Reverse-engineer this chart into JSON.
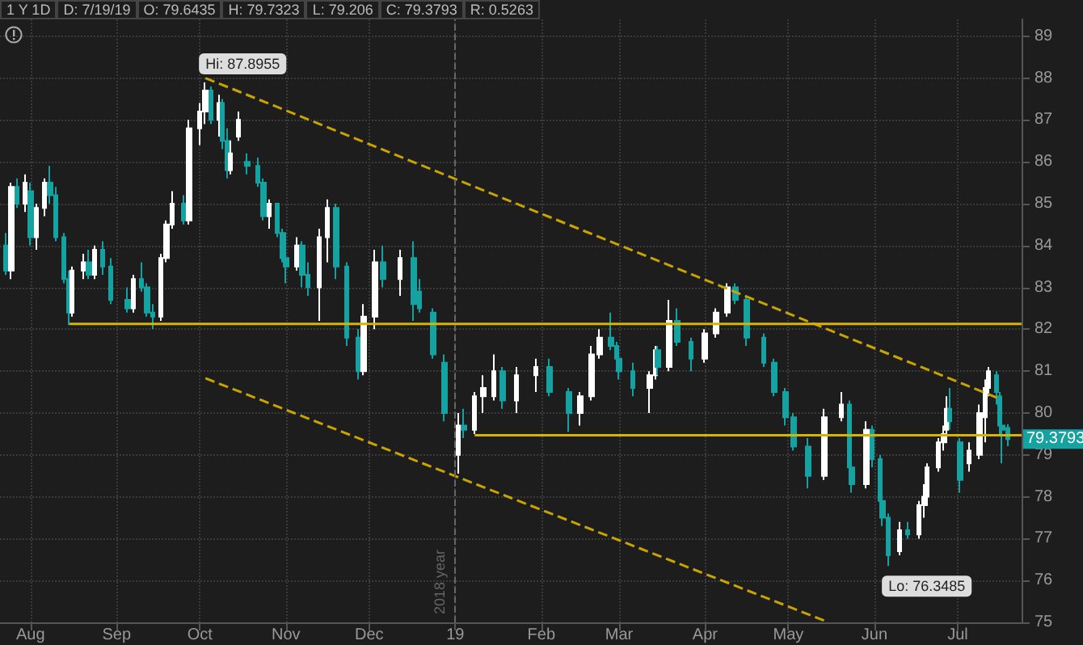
{
  "chart_data": {
    "type": "candlestick",
    "annotations": [
      "1 Y 1D",
      "D: 7/19/19",
      "O: 79.6435",
      "H: 79.7323",
      "L: 79.206",
      "C: 79.3793",
      "R: 0.5263",
      {
        "text": "Hi: 87.8955",
        "x": "2018-10-03",
        "y": 87.8955
      },
      {
        "text": "Lo: 76.3485",
        "x": "2019-06-06",
        "y": 76.3485
      },
      {
        "text": "79.3793",
        "x": "2019-07-19",
        "y": 79.3793
      }
    ],
    "x": [
      "2018-07-23",
      "2018-07-25",
      "2018-07-27",
      "2018-07-30",
      "2018-08-01",
      "2018-08-03",
      "2018-08-06",
      "2018-08-08",
      "2018-08-10",
      "2018-08-13",
      "2018-08-15",
      "2018-08-16",
      "2018-08-20",
      "2018-08-22",
      "2018-08-24",
      "2018-08-27",
      "2018-08-30",
      "2018-09-05",
      "2018-09-07",
      "2018-09-10",
      "2018-09-12",
      "2018-09-14",
      "2018-09-17",
      "2018-09-19",
      "2018-09-21",
      "2018-09-25",
      "2018-09-27",
      "2018-10-01",
      "2018-10-03",
      "2018-10-05",
      "2018-10-08",
      "2018-10-09",
      "2018-10-11",
      "2018-10-12",
      "2018-10-15",
      "2018-10-18",
      "2018-10-22",
      "2018-10-24",
      "2018-10-26",
      "2018-10-29",
      "2018-10-31",
      "2018-11-01",
      "2018-11-05",
      "2018-11-07",
      "2018-11-09",
      "2018-11-13",
      "2018-11-16",
      "2018-11-19",
      "2018-11-23",
      "2018-11-27",
      "2018-11-29",
      "2018-12-03",
      "2018-12-06",
      "2018-12-12",
      "2018-12-17",
      "2018-12-19",
      "2018-12-24",
      "2018-12-28",
      "2019-01-02",
      "2019-01-04",
      "2019-01-08",
      "2019-01-11",
      "2019-01-15",
      "2019-01-18",
      "2019-01-23",
      "2019-01-30",
      "2019-02-04",
      "2019-02-11",
      "2019-02-15",
      "2019-02-19",
      "2019-02-22",
      "2019-02-26",
      "2019-02-28",
      "2019-03-01",
      "2019-03-06",
      "2019-03-12",
      "2019-03-14",
      "2019-03-15",
      "2019-03-19",
      "2019-03-22",
      "2019-03-27",
      "2019-04-01",
      "2019-04-05",
      "2019-04-09",
      "2019-04-12",
      "2019-04-16",
      "2019-04-22",
      "2019-04-26",
      "2019-04-30",
      "2019-05-03",
      "2019-05-08",
      "2019-05-14",
      "2019-05-20",
      "2019-05-23",
      "2019-05-24",
      "2019-05-29",
      "2019-05-31",
      "2019-06-03",
      "2019-06-04",
      "2019-06-06",
      "2019-06-10",
      "2019-06-13",
      "2019-06-17",
      "2019-06-19",
      "2019-06-20",
      "2019-06-24",
      "2019-06-26",
      "2019-06-27",
      "2019-06-28",
      "2019-07-02",
      "2019-07-05",
      "2019-07-09",
      "2019-07-11",
      "2019-07-12",
      "2019-07-15",
      "2019-07-16",
      "2019-07-17",
      "2019-07-19"
    ],
    "ohlc": [
      [
        84.0,
        84.3,
        83.3,
        83.4
      ],
      [
        83.4,
        85.5,
        83.2,
        85.4
      ],
      [
        85.4,
        85.6,
        84.9,
        85.0
      ],
      [
        85.0,
        85.7,
        84.8,
        85.5
      ],
      [
        85.3,
        85.5,
        84.0,
        84.2
      ],
      [
        84.2,
        85.0,
        83.9,
        84.9
      ],
      [
        84.9,
        85.6,
        84.7,
        85.5
      ],
      [
        85.5,
        85.9,
        85.0,
        85.2
      ],
      [
        85.2,
        85.4,
        84.1,
        84.2
      ],
      [
        84.2,
        84.3,
        83.1,
        83.2
      ],
      [
        83.2,
        83.4,
        82.1,
        82.4
      ],
      [
        82.4,
        83.5,
        82.3,
        83.4
      ],
      [
        83.4,
        83.8,
        83.2,
        83.6
      ],
      [
        83.6,
        83.9,
        83.2,
        83.3
      ],
      [
        83.3,
        84.0,
        83.2,
        83.9
      ],
      [
        83.9,
        84.1,
        83.3,
        83.5
      ],
      [
        83.5,
        83.7,
        82.6,
        82.7
      ],
      [
        82.7,
        83.0,
        82.4,
        82.5
      ],
      [
        82.5,
        83.3,
        82.4,
        83.2
      ],
      [
        83.2,
        83.6,
        82.9,
        83.0
      ],
      [
        83.0,
        83.1,
        82.3,
        82.4
      ],
      [
        82.4,
        82.6,
        82.0,
        82.3
      ],
      [
        82.3,
        83.8,
        82.2,
        83.7
      ],
      [
        83.7,
        84.6,
        83.6,
        84.5
      ],
      [
        84.5,
        85.3,
        84.4,
        85.0
      ],
      [
        85.0,
        85.2,
        84.5,
        84.6
      ],
      [
        84.6,
        87.0,
        84.5,
        86.8
      ],
      [
        86.8,
        87.4,
        86.4,
        87.2
      ],
      [
        87.2,
        87.8955,
        86.9,
        87.7
      ],
      [
        87.7,
        87.8,
        86.9,
        87.0
      ],
      [
        87.0,
        87.6,
        86.6,
        87.4
      ],
      [
        87.4,
        87.5,
        86.3,
        86.5
      ],
      [
        86.5,
        86.8,
        85.6,
        85.8
      ],
      [
        85.8,
        86.5,
        85.7,
        86.2
      ],
      [
        86.6,
        87.2,
        86.5,
        87.0
      ],
      [
        86.0,
        86.2,
        85.7,
        85.9
      ],
      [
        85.9,
        86.1,
        85.4,
        85.5
      ],
      [
        85.5,
        85.6,
        84.6,
        84.7
      ],
      [
        84.7,
        85.1,
        84.4,
        85.0
      ],
      [
        85.0,
        85.0,
        84.2,
        84.3
      ],
      [
        84.3,
        84.4,
        83.6,
        83.7
      ],
      [
        83.7,
        84.0,
        83.1,
        83.5
      ],
      [
        83.5,
        84.2,
        83.4,
        84.0
      ],
      [
        84.0,
        84.1,
        83.0,
        83.3
      ],
      [
        83.3,
        83.6,
        82.8,
        83.0
      ],
      [
        83.0,
        84.4,
        82.2,
        84.2
      ],
      [
        84.2,
        85.1,
        83.6,
        84.9
      ],
      [
        84.9,
        85.0,
        83.2,
        83.5
      ],
      [
        83.5,
        83.6,
        81.6,
        81.8
      ],
      [
        81.8,
        82.0,
        80.8,
        81.0
      ],
      [
        81.0,
        82.6,
        80.9,
        82.3
      ],
      [
        82.3,
        83.9,
        82.0,
        83.6
      ],
      [
        83.6,
        84.0,
        83.0,
        83.2
      ],
      [
        83.2,
        83.9,
        82.8,
        83.7
      ],
      [
        83.7,
        84.1,
        82.2,
        82.6
      ],
      [
        82.9,
        83.2,
        82.4,
        82.5
      ],
      [
        82.4,
        82.5,
        81.3,
        81.4
      ],
      [
        81.2,
        81.4,
        79.8,
        80.0
      ],
      [
        79.0,
        80.0,
        78.55,
        79.7
      ],
      [
        79.7,
        80.1,
        79.4,
        79.6
      ],
      [
        79.6,
        80.5,
        79.5,
        80.4
      ],
      [
        80.4,
        80.9,
        80.0,
        80.6
      ],
      [
        80.4,
        81.4,
        80.3,
        81.0
      ],
      [
        81.0,
        81.1,
        80.1,
        80.3
      ],
      [
        80.3,
        81.1,
        80.0,
        80.9
      ],
      [
        80.9,
        81.3,
        80.5,
        81.1
      ],
      [
        81.1,
        81.3,
        80.4,
        80.5
      ],
      [
        80.5,
        80.6,
        79.55,
        80.0
      ],
      [
        80.0,
        80.5,
        79.7,
        80.4
      ],
      [
        80.4,
        81.6,
        80.3,
        81.4
      ],
      [
        81.4,
        82.0,
        81.3,
        81.8
      ],
      [
        81.8,
        82.4,
        81.5,
        81.6
      ],
      [
        81.6,
        81.7,
        81.2,
        81.3
      ],
      [
        81.3,
        81.6,
        80.8,
        81.0
      ],
      [
        81.0,
        81.2,
        80.4,
        80.6
      ],
      [
        80.6,
        81.0,
        80.0,
        80.9
      ],
      [
        80.9,
        81.6,
        80.8,
        81.5
      ],
      [
        81.5,
        81.6,
        80.9,
        81.1
      ],
      [
        81.1,
        82.7,
        81.0,
        82.2
      ],
      [
        82.2,
        82.5,
        81.6,
        81.7
      ],
      [
        81.7,
        81.8,
        81.0,
        81.3
      ],
      [
        81.3,
        82.0,
        81.2,
        81.9
      ],
      [
        81.9,
        82.5,
        81.8,
        82.4
      ],
      [
        82.4,
        83.1,
        82.3,
        83.0
      ],
      [
        83.0,
        83.1,
        82.6,
        82.7
      ],
      [
        82.7,
        82.8,
        81.6,
        81.8
      ],
      [
        81.8,
        81.9,
        81.1,
        81.2
      ],
      [
        81.2,
        81.3,
        80.4,
        80.5
      ],
      [
        80.5,
        80.6,
        79.7,
        79.9
      ],
      [
        79.9,
        80.0,
        79.1,
        79.2
      ],
      [
        79.2,
        79.4,
        78.2,
        78.5
      ],
      [
        78.5,
        80.1,
        78.4,
        79.9
      ],
      [
        79.9,
        80.5,
        79.8,
        80.2
      ],
      [
        80.2,
        80.3,
        78.5,
        78.7
      ],
      [
        78.7,
        79.0,
        78.1,
        78.3
      ],
      [
        78.3,
        79.8,
        78.2,
        79.6
      ],
      [
        79.6,
        79.7,
        78.7,
        78.9
      ],
      [
        78.9,
        79.0,
        77.8,
        77.9
      ],
      [
        77.9,
        78.0,
        77.3,
        77.5
      ],
      [
        77.5,
        77.6,
        76.3485,
        76.6
      ],
      [
        76.7,
        77.4,
        76.6,
        77.2
      ],
      [
        77.2,
        77.4,
        77.0,
        77.1
      ],
      [
        77.1,
        77.9,
        77.0,
        77.8
      ],
      [
        77.8,
        78.3,
        77.5,
        78.0
      ],
      [
        78.0,
        78.8,
        77.9,
        78.7
      ],
      [
        78.7,
        79.4,
        78.6,
        79.3
      ],
      [
        79.3,
        79.7,
        79.1,
        79.5
      ],
      [
        79.6,
        80.4,
        79.5,
        80.1
      ],
      [
        80.1,
        80.6,
        79.6,
        79.8
      ],
      [
        79.3,
        79.4,
        78.1,
        78.4
      ],
      [
        78.8,
        79.3,
        78.6,
        79.1
      ],
      [
        79.0,
        80.2,
        78.9,
        80.0
      ],
      [
        79.9,
        80.8,
        79.3,
        80.6
      ],
      [
        80.6,
        81.1,
        80.4,
        81.0
      ],
      [
        80.9,
        81.0,
        80.2,
        80.5
      ],
      [
        80.4,
        80.5,
        79.5,
        79.7
      ],
      [
        79.7,
        79.8,
        78.8,
        79.6
      ],
      [
        79.6435,
        79.7323,
        79.206,
        79.3793
      ]
    ],
    "colors": [
      "#17a2a2",
      "#ffffff",
      "#17a2a2",
      "#ffffff",
      "#17a2a2",
      "#ffffff",
      "#ffffff",
      "#17a2a2",
      "#17a2a2",
      "#17a2a2",
      "#17a2a2",
      "#ffffff",
      "#ffffff",
      "#17a2a2",
      "#ffffff",
      "#17a2a2",
      "#17a2a2",
      "#17a2a2",
      "#ffffff",
      "#17a2a2",
      "#17a2a2",
      "#17a2a2",
      "#ffffff",
      "#ffffff",
      "#ffffff",
      "#17a2a2",
      "#ffffff",
      "#ffffff",
      "#ffffff",
      "#17a2a2",
      "#ffffff",
      "#17a2a2",
      "#17a2a2",
      "#ffffff",
      "#ffffff",
      "#17a2a2",
      "#17a2a2",
      "#17a2a2",
      "#ffffff",
      "#17a2a2",
      "#17a2a2",
      "#17a2a2",
      "#ffffff",
      "#17a2a2",
      "#17a2a2",
      "#ffffff",
      "#ffffff",
      "#17a2a2",
      "#17a2a2",
      "#17a2a2",
      "#ffffff",
      "#ffffff",
      "#17a2a2",
      "#ffffff",
      "#17a2a2",
      "#17a2a2",
      "#17a2a2",
      "#17a2a2",
      "#ffffff",
      "#17a2a2",
      "#ffffff",
      "#ffffff",
      "#ffffff",
      "#17a2a2",
      "#ffffff",
      "#ffffff",
      "#17a2a2",
      "#17a2a2",
      "#ffffff",
      "#ffffff",
      "#ffffff",
      "#17a2a2",
      "#17a2a2",
      "#17a2a2",
      "#17a2a2",
      "#ffffff",
      "#ffffff",
      "#17a2a2",
      "#ffffff",
      "#17a2a2",
      "#17a2a2",
      "#ffffff",
      "#ffffff",
      "#ffffff",
      "#17a2a2",
      "#17a2a2",
      "#17a2a2",
      "#17a2a2",
      "#17a2a2",
      "#17a2a2",
      "#17a2a2",
      "#ffffff",
      "#ffffff",
      "#17a2a2",
      "#17a2a2",
      "#ffffff",
      "#17a2a2",
      "#17a2a2",
      "#17a2a2",
      "#17a2a2",
      "#ffffff",
      "#17a2a2",
      "#ffffff",
      "#ffffff",
      "#ffffff",
      "#ffffff",
      "#ffffff",
      "#ffffff",
      "#17a2a2",
      "#17a2a2",
      "#ffffff",
      "#ffffff",
      "#ffffff",
      "#ffffff",
      "#17a2a2",
      "#17a2a2",
      "#17a2a2",
      "#17a2a2"
    ],
    "series": [
      {
        "type": "line",
        "x": [
          "2018-10-03",
          "2019-07-15"
        ],
        "values": [
          88.0,
          80.37
        ],
        "color": "#c9a400",
        "line_style": "dashed"
      },
      {
        "type": "line",
        "x": [
          "2018-10-03",
          "2019-05-14"
        ],
        "values": [
          80.83,
          75.04
        ],
        "color": "#c9a400",
        "line_style": "dashed"
      },
      {
        "type": "line",
        "x": [
          "2018-08-15",
          "2019-07-24"
        ],
        "values": [
          82.13,
          82.13
        ],
        "color": "#d8b400",
        "line_style": "solid"
      },
      {
        "type": "line",
        "x": [
          "2019-01-08",
          "2019-07-24"
        ],
        "values": [
          79.47,
          79.47
        ],
        "color": "#d8b400",
        "line_style": "solid"
      }
    ],
    "ref_lines": [
      {
        "axis": "x",
        "value": "2019-01-01",
        "label": "2018 year",
        "color": "#666666",
        "line_style": "dashed"
      }
    ],
    "marker": "none",
    "grid": true,
    "xlim": [
      "2018-07-21",
      "2019-07-24"
    ],
    "xticks": [
      {
        "value": "2018-08-01",
        "label": "Aug"
      },
      {
        "value": "2018-09-01",
        "label": "Sep"
      },
      {
        "value": "2018-10-01",
        "label": "Oct"
      },
      {
        "value": "2018-11-01",
        "label": "Nov"
      },
      {
        "value": "2018-12-01",
        "label": "Dec"
      },
      {
        "value": "2019-01-01",
        "label": "19"
      },
      {
        "value": "2019-02-01",
        "label": "Feb"
      },
      {
        "value": "2019-03-01",
        "label": "Mar"
      },
      {
        "value": "2019-04-01",
        "label": "Apr"
      },
      {
        "value": "2019-05-01",
        "label": "May"
      },
      {
        "value": "2019-06-01",
        "label": "Jun"
      },
      {
        "value": "2019-07-01",
        "label": "Jul"
      }
    ],
    "ylim": [
      75,
      89.4
    ],
    "yticks": [
      75,
      76,
      77,
      78,
      79,
      80,
      81,
      82,
      83,
      84,
      85,
      86,
      87,
      88,
      89
    ]
  }
}
